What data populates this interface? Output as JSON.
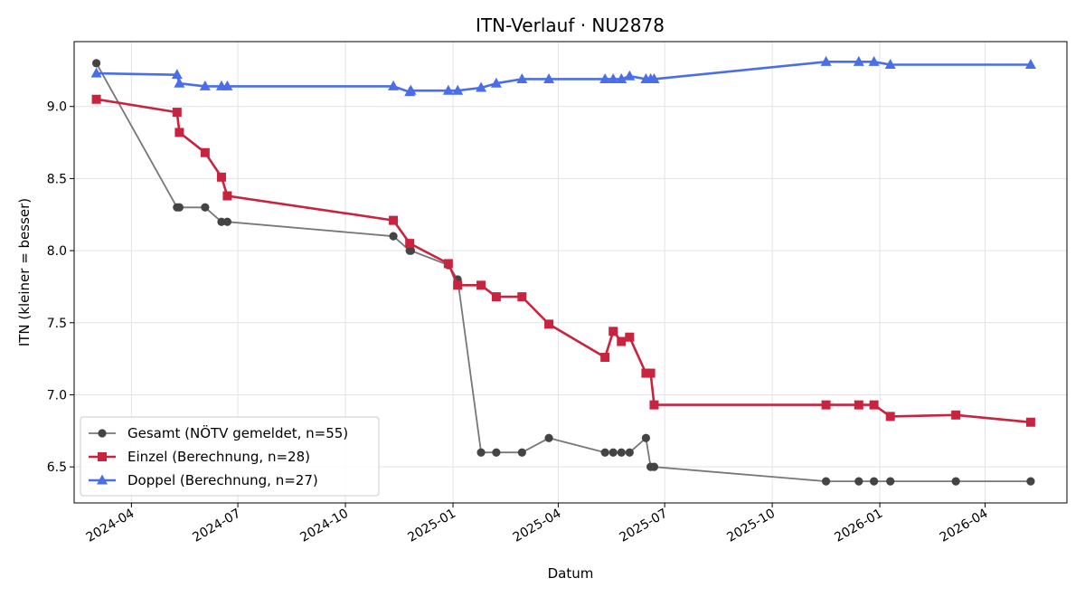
{
  "chart_data": {
    "type": "line",
    "title": "ITN-Verlauf · NU2878",
    "xlabel": "Datum",
    "ylabel": "ITN  (kleiner = besser)",
    "xlim": [
      "2024-02-12",
      "2026-06-10"
    ],
    "ylim": [
      6.25,
      9.45
    ],
    "x_ticks": [
      "2024-04-01",
      "2024-07-01",
      "2024-10-01",
      "2025-01-01",
      "2025-04-01",
      "2025-07-01",
      "2025-10-01",
      "2026-01-01",
      "2026-04-01"
    ],
    "x_tick_labels": [
      "2024-04",
      "2024-07",
      "2024-10",
      "2025-01",
      "2025-04",
      "2025-07",
      "2025-10",
      "2026-01",
      "2026-04"
    ],
    "y_ticks": [
      6.5,
      7.0,
      7.5,
      8.0,
      8.5,
      9.0
    ],
    "y_tick_labels": [
      "6.5",
      "7.0",
      "7.5",
      "8.0",
      "8.5",
      "9.0"
    ],
    "grid": true,
    "legend_position": "lower-left",
    "series": [
      {
        "name": "Gesamt (NÖTV gemeldet, n=55)",
        "color": "#777777",
        "marker_color": "#444444",
        "marker": "circle",
        "points": [
          [
            "2024-03-02",
            9.3
          ],
          [
            "2024-05-10",
            8.3
          ],
          [
            "2024-05-12",
            8.3
          ],
          [
            "2024-06-03",
            8.3
          ],
          [
            "2024-06-17",
            8.2
          ],
          [
            "2024-06-22",
            8.2
          ],
          [
            "2024-11-11",
            8.1
          ],
          [
            "2024-11-25",
            8.0
          ],
          [
            "2024-11-26",
            8.0
          ],
          [
            "2024-12-28",
            7.9
          ],
          [
            "2025-01-05",
            7.8
          ],
          [
            "2025-01-25",
            6.6
          ],
          [
            "2025-02-07",
            6.6
          ],
          [
            "2025-03-01",
            6.6
          ],
          [
            "2025-03-24",
            6.7
          ],
          [
            "2025-05-11",
            6.6
          ],
          [
            "2025-05-18",
            6.6
          ],
          [
            "2025-05-25",
            6.6
          ],
          [
            "2025-06-01",
            6.6
          ],
          [
            "2025-06-15",
            6.7
          ],
          [
            "2025-06-19",
            6.5
          ],
          [
            "2025-06-22",
            6.5
          ],
          [
            "2025-11-16",
            6.4
          ],
          [
            "2025-12-14",
            6.4
          ],
          [
            "2025-12-27",
            6.4
          ],
          [
            "2026-01-10",
            6.4
          ],
          [
            "2026-03-07",
            6.4
          ],
          [
            "2026-05-10",
            6.4
          ]
        ]
      },
      {
        "name": "Einzel (Berechnung, n=28)",
        "color": "#c8233f",
        "marker_color": "#c8233f",
        "marker": "square",
        "points": [
          [
            "2024-03-02",
            9.05
          ],
          [
            "2024-05-10",
            8.96
          ],
          [
            "2024-05-12",
            8.82
          ],
          [
            "2024-06-03",
            8.68
          ],
          [
            "2024-06-17",
            8.51
          ],
          [
            "2024-06-22",
            8.38
          ],
          [
            "2024-11-11",
            8.21
          ],
          [
            "2024-11-25",
            8.05
          ],
          [
            "2024-12-28",
            7.91
          ],
          [
            "2025-01-05",
            7.76
          ],
          [
            "2025-01-25",
            7.76
          ],
          [
            "2025-02-07",
            7.68
          ],
          [
            "2025-03-01",
            7.68
          ],
          [
            "2025-03-24",
            7.49
          ],
          [
            "2025-05-11",
            7.26
          ],
          [
            "2025-05-18",
            7.44
          ],
          [
            "2025-05-25",
            7.37
          ],
          [
            "2025-06-01",
            7.4
          ],
          [
            "2025-06-15",
            7.15
          ],
          [
            "2025-06-19",
            7.15
          ],
          [
            "2025-06-22",
            6.93
          ],
          [
            "2025-11-16",
            6.93
          ],
          [
            "2025-12-14",
            6.93
          ],
          [
            "2025-12-27",
            6.93
          ],
          [
            "2026-01-10",
            6.85
          ],
          [
            "2026-03-07",
            6.86
          ],
          [
            "2026-05-10",
            6.81
          ]
        ]
      },
      {
        "name": "Doppel (Berechnung, n=27)",
        "color": "#4a6ee8",
        "marker_color": "#4a6ee8",
        "marker": "triangle",
        "points": [
          [
            "2024-03-02",
            9.23
          ],
          [
            "2024-05-10",
            9.22
          ],
          [
            "2024-05-12",
            9.16
          ],
          [
            "2024-06-03",
            9.14
          ],
          [
            "2024-06-17",
            9.14
          ],
          [
            "2024-06-22",
            9.14
          ],
          [
            "2024-11-11",
            9.14
          ],
          [
            "2024-11-25",
            9.1
          ],
          [
            "2024-11-26",
            9.11
          ],
          [
            "2024-12-28",
            9.11
          ],
          [
            "2025-01-05",
            9.11
          ],
          [
            "2025-01-25",
            9.13
          ],
          [
            "2025-02-07",
            9.16
          ],
          [
            "2025-03-01",
            9.19
          ],
          [
            "2025-03-24",
            9.19
          ],
          [
            "2025-05-11",
            9.19
          ],
          [
            "2025-05-18",
            9.19
          ],
          [
            "2025-05-25",
            9.19
          ],
          [
            "2025-06-01",
            9.21
          ],
          [
            "2025-06-15",
            9.19
          ],
          [
            "2025-06-19",
            9.19
          ],
          [
            "2025-06-22",
            9.19
          ],
          [
            "2025-11-16",
            9.31
          ],
          [
            "2025-12-14",
            9.31
          ],
          [
            "2025-12-27",
            9.31
          ],
          [
            "2026-01-10",
            9.29
          ],
          [
            "2026-05-10",
            9.29
          ]
        ]
      }
    ]
  }
}
